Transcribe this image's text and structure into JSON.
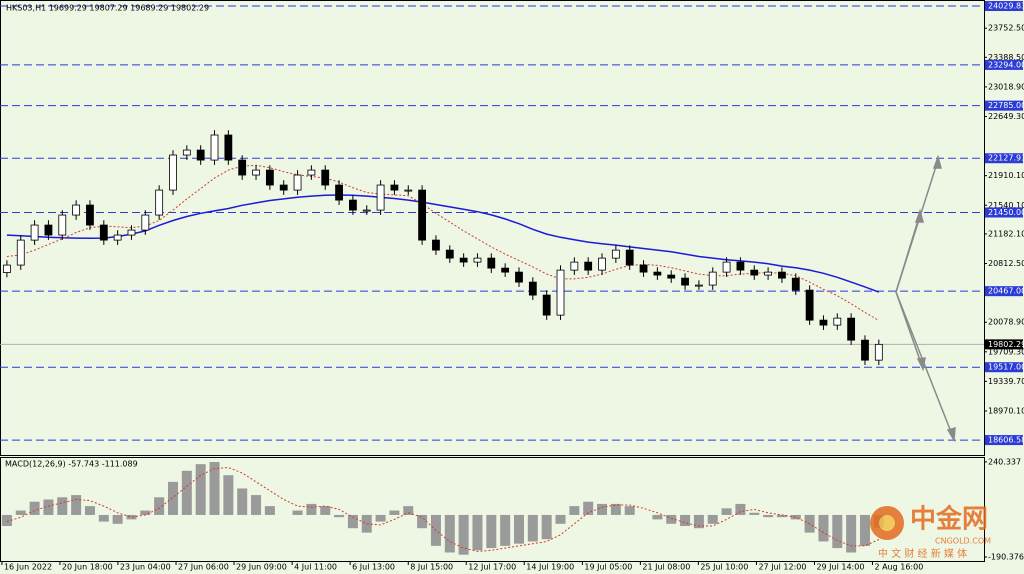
{
  "chart_data": [
    {
      "type": "candlestick",
      "title": "HKS03,H1  19699.29 19807.29 19689.29 19802.29",
      "xlim": [
        -0.5,
        70.6
      ],
      "ylim": [
        18420,
        24105
      ],
      "xticks": [
        {
          "value": -0.36,
          "label": "16 Jun 2022"
        },
        {
          "value": 3.83,
          "label": "20 Jun 18:00"
        },
        {
          "value": 8.02,
          "label": "23 Jun 04:00"
        },
        {
          "value": 12.22,
          "label": "27 Jun 06:00"
        },
        {
          "value": 16.41,
          "label": "29 Jun 09:00"
        },
        {
          "value": 20.61,
          "label": "4 Jul 11:00"
        },
        {
          "value": 24.8,
          "label": "6 Jul 13:00"
        },
        {
          "value": 29,
          "label": "8 Jul 15:00"
        },
        {
          "value": 33.19,
          "label": "12 Jul 17:00"
        },
        {
          "value": 37.38,
          "label": "14 Jul 19:00"
        },
        {
          "value": 41.58,
          "label": "19 Jul 05:00"
        },
        {
          "value": 45.77,
          "label": "21 Jul 08:00"
        },
        {
          "value": 49.96,
          "label": "25 Jul 10:00"
        },
        {
          "value": 54.16,
          "label": "27 Jul 12:00"
        },
        {
          "value": 58.35,
          "label": "29 Jul 14:00"
        },
        {
          "value": 62.54,
          "label": "2 Aug 16:00"
        }
      ],
      "yticks": [
        {
          "value": 23752.5,
          "label": "23752.50"
        },
        {
          "value": 23388.5,
          "label": "23388.50"
        },
        {
          "value": 23018.9,
          "label": "23018.90"
        },
        {
          "value": 22649.3,
          "label": "22649.30"
        },
        {
          "value": 21910.1,
          "label": "21910.10"
        },
        {
          "value": 21540.1,
          "label": "21540.10"
        },
        {
          "value": 21182.1,
          "label": "21182.10"
        },
        {
          "value": 20812.5,
          "label": "20812.50"
        },
        {
          "value": 20078.9,
          "label": "20078.90"
        },
        {
          "value": 19709.3,
          "label": "19709.30"
        },
        {
          "value": 19339.7,
          "label": "19339.70"
        },
        {
          "value": 18970.1,
          "label": "18970.10"
        }
      ],
      "levels": [
        24029.83,
        {
          "value": 23294,
          "label": "23294.00"
        },
        {
          "value": 22785,
          "label": "22785.00"
        },
        22127.93,
        {
          "value": 21450,
          "label": "21450.00"
        },
        {
          "value": 20467,
          "label": "20467.00"
        },
        {
          "value": 19517,
          "label": "19517.00"
        },
        18606.58
      ],
      "level_color": "#2b3bd6",
      "current_price": 19802.29,
      "open": [
        20700,
        20793,
        21105,
        21293,
        21168,
        21418,
        21543,
        21293,
        21105,
        21168,
        21230,
        21418,
        21730,
        22168,
        22230,
        22105,
        22418,
        22105,
        21918,
        21980,
        21793,
        21730,
        21918,
        21980,
        21793,
        21605,
        21480,
        21480,
        21793,
        21730,
        21730,
        21105,
        20980,
        20880,
        20830,
        20880,
        20755,
        20705,
        20580,
        20418,
        20168,
        20730,
        20830,
        20730,
        20880,
        20980,
        20793,
        20705,
        20668,
        20630,
        20543,
        20543,
        20705,
        20830,
        20730,
        20668,
        20705,
        20630,
        20480,
        20105,
        20043,
        20130,
        19855,
        19605
      ],
      "high": [
        20853,
        21165,
        21353,
        21353,
        21478,
        21603,
        21603,
        21353,
        21228,
        21290,
        21478,
        21790,
        22228,
        22290,
        22290,
        22478,
        22478,
        22165,
        22040,
        22040,
        21853,
        21978,
        22040,
        22040,
        21853,
        21665,
        21540,
        21853,
        21853,
        21790,
        21790,
        21165,
        21040,
        20940,
        20940,
        20940,
        20815,
        20765,
        20640,
        20478,
        20790,
        20890,
        20890,
        20940,
        21040,
        21040,
        20853,
        20765,
        20728,
        20690,
        20603,
        20765,
        20890,
        20890,
        20790,
        20765,
        20765,
        20690,
        20540,
        20165,
        20190,
        20190,
        19915,
        19862
      ],
      "low": [
        20640,
        20733,
        21045,
        21108,
        21108,
        21358,
        21233,
        21045,
        21045,
        21108,
        21170,
        21358,
        21670,
        22108,
        22045,
        22045,
        22045,
        21858,
        21858,
        21733,
        21670,
        21670,
        21858,
        21733,
        21545,
        21420,
        21420,
        21420,
        21670,
        21670,
        21045,
        20920,
        20820,
        20770,
        20770,
        20695,
        20645,
        20520,
        20358,
        20108,
        20108,
        20670,
        20670,
        20670,
        20820,
        20733,
        20645,
        20608,
        20570,
        20483,
        20483,
        20483,
        20645,
        20670,
        20608,
        20608,
        20570,
        20420,
        20045,
        19983,
        19983,
        19795,
        19545,
        19545
      ],
      "close": [
        20793,
        21105,
        21293,
        21168,
        21418,
        21543,
        21293,
        21105,
        21168,
        21230,
        21418,
        21730,
        22168,
        22230,
        22105,
        22418,
        22105,
        21918,
        21980,
        21793,
        21730,
        21918,
        21980,
        21793,
        21605,
        21480,
        21480,
        21793,
        21730,
        21730,
        21105,
        20980,
        20880,
        20830,
        20880,
        20755,
        20705,
        20580,
        20418,
        20168,
        20730,
        20830,
        20730,
        20880,
        20980,
        20793,
        20705,
        20668,
        20630,
        20543,
        20543,
        20705,
        20830,
        20730,
        20668,
        20705,
        20630,
        20480,
        20105,
        20043,
        20130,
        19855,
        19605,
        19802.29
      ],
      "series": [
        {
          "color": "#1a1ad8",
          "values": [
            21168,
            21160,
            21150,
            21140,
            21135,
            21130,
            21128,
            21130,
            21150,
            21180,
            21220,
            21290,
            21350,
            21400,
            21440,
            21470,
            21500,
            21540,
            21570,
            21600,
            21620,
            21640,
            21655,
            21665,
            21668,
            21665,
            21655,
            21640,
            21625,
            21605,
            21580,
            21550,
            21520,
            21490,
            21460,
            21420,
            21370,
            21310,
            21240,
            21180,
            21140,
            21110,
            21080,
            21060,
            21043,
            21020,
            21000,
            20980,
            20960,
            20930,
            20900,
            20880,
            20860,
            20845,
            20830,
            20810,
            20780,
            20760,
            20730,
            20690,
            20640,
            20580,
            20520,
            20455
          ]
        },
        {
          "color": "#d23a2a",
          "dashed": true,
          "values": [
            20900,
            20920,
            20980,
            21050,
            21120,
            21200,
            21260,
            21280,
            21270,
            21260,
            21280,
            21350,
            21480,
            21620,
            21750,
            21880,
            21980,
            22030,
            22040,
            22010,
            21960,
            21920,
            21900,
            21880,
            21830,
            21760,
            21700,
            21680,
            21670,
            21660,
            21560,
            21440,
            21330,
            21220,
            21120,
            21020,
            20930,
            20850,
            20770,
            20680,
            20620,
            20620,
            20640,
            20680,
            20740,
            20790,
            20800,
            20790,
            20760,
            20720,
            20680,
            20660,
            20660,
            20680,
            20690,
            20700,
            20690,
            20660,
            20580,
            20490,
            20410,
            20310,
            20200,
            20100
          ]
        }
      ]
    },
    {
      "type": "macd",
      "title": "MACD(12,26,9) -57.743 -111.089",
      "xlim": [
        -0.5,
        70.6
      ],
      "ylim": [
        -204,
        258
      ],
      "yticks": [
        240.337,
        -190.376
      ],
      "series": [
        {
          "color": "#9a9a9a",
          "values": [
            -50,
            20,
            60,
            70,
            80,
            90,
            40,
            -30,
            -40,
            -20,
            20,
            80,
            150,
            200,
            230,
            240,
            180,
            120,
            90,
            40,
            0,
            20,
            50,
            40,
            -10,
            -60,
            -80,
            -30,
            20,
            40,
            -60,
            -140,
            -170,
            -180,
            -160,
            -150,
            -140,
            -130,
            -120,
            -110,
            -40,
            40,
            60,
            50,
            50,
            40,
            0,
            -20,
            -40,
            -50,
            -60,
            -40,
            30,
            50,
            10,
            -10,
            -10,
            -20,
            -80,
            -120,
            -150,
            -170,
            -140,
            -57.743
          ]
        },
        {
          "color": "#d23a2a",
          "dashed": true,
          "values": [
            -30,
            -10,
            20,
            40,
            55,
            70,
            65,
            40,
            10,
            -10,
            0,
            30,
            80,
            130,
            180,
            210,
            215,
            190,
            150,
            110,
            70,
            40,
            35,
            40,
            25,
            -10,
            -40,
            -45,
            -20,
            10,
            -10,
            -70,
            -120,
            -150,
            -165,
            -160,
            -150,
            -140,
            -130,
            -120,
            -90,
            -40,
            10,
            35,
            45,
            45,
            30,
            10,
            -15,
            -35,
            -50,
            -50,
            -20,
            15,
            25,
            10,
            0,
            -10,
            -40,
            -80,
            -115,
            -140,
            -140,
            -111.089
          ]
        }
      ]
    }
  ],
  "watermark": {
    "logo": "中金网",
    "site": "CNGOLD.COM",
    "tagline": "中 文 财 经 新 媒 体"
  }
}
